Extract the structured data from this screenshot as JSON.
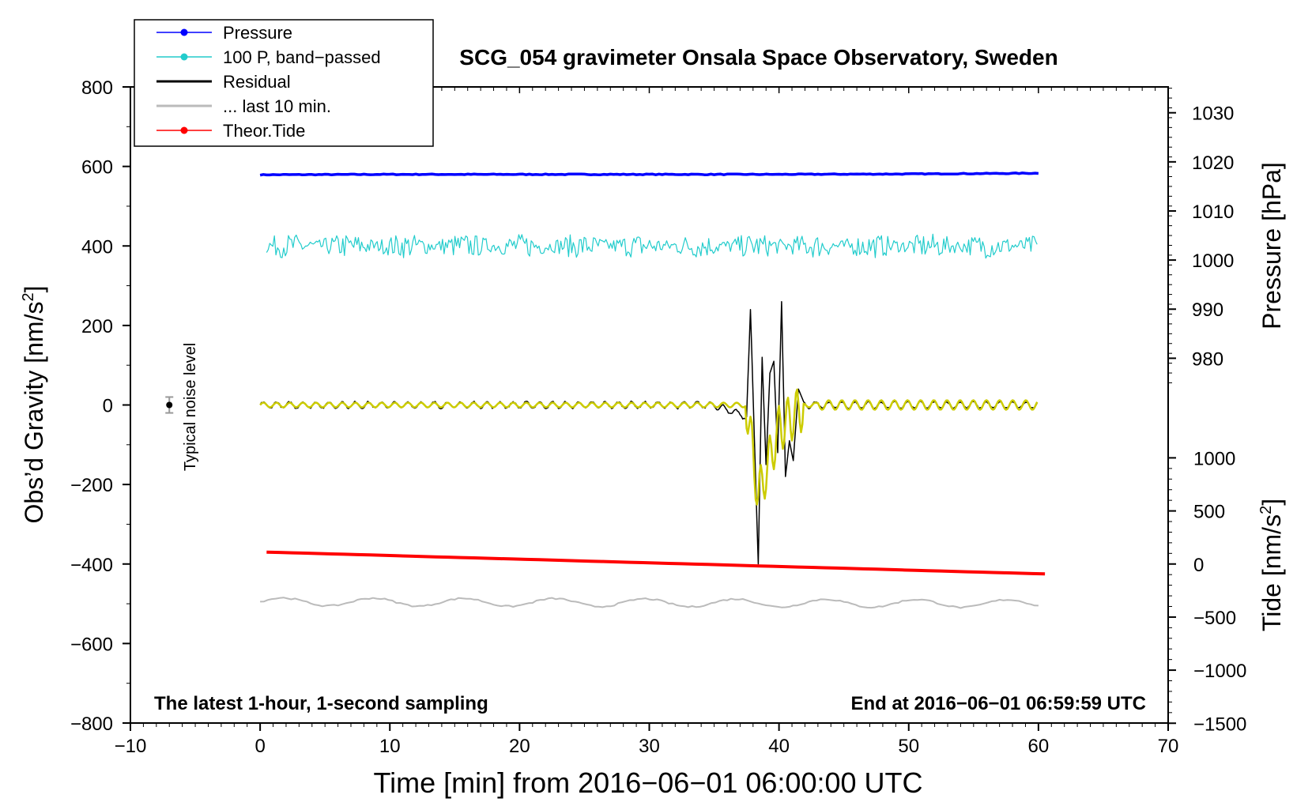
{
  "chart_data": {
    "type": "line",
    "title": "SCG_054 gravimeter Onsala Space Observatory, Sweden",
    "xlabel": "Time [min] from 2016−06−01 06:00:00 UTC",
    "ylabel_main": "Obs’d Gravity [nm/s",
    "ylabel_main_sup": "2",
    "ylabel_main_close": "]",
    "ylabel_pressure": "Pressure [hPa]",
    "ylabel_tide": "Tide [nm/s",
    "ylabel_tide_sup": "2",
    "ylabel_tide_close": "]",
    "xlim": [
      -10,
      70
    ],
    "ylim": [
      -800,
      800
    ],
    "xticks": [
      "−10",
      "0",
      "10",
      "20",
      "30",
      "40",
      "50",
      "60",
      "70"
    ],
    "xtick_values": [
      -10,
      0,
      10,
      20,
      30,
      40,
      50,
      60,
      70
    ],
    "yticks": [
      "800",
      "600",
      "400",
      "200",
      "0",
      "−200",
      "−400",
      "−600",
      "−800"
    ],
    "ytick_values": [
      800,
      600,
      400,
      200,
      0,
      -200,
      -400,
      -600,
      -800
    ],
    "pressure_axis": {
      "ticks": [
        "1030",
        "1020",
        "1010",
        "1000",
        "990",
        "980"
      ],
      "tick_values": [
        1030,
        1020,
        1010,
        1000,
        990,
        980
      ],
      "map_gravity_at_1030": 735,
      "map_gravity_per_hpa": 12.35
    },
    "tide_axis": {
      "ticks": [
        "1000",
        "500",
        "0",
        "−500",
        "−1000",
        "−1500"
      ],
      "tick_values": [
        1000,
        500,
        0,
        -500,
        -1000,
        -1500
      ],
      "map_gravity_at_0": -400,
      "map_gravity_per_unit": 0.267
    },
    "annotation_left": "The latest 1-hour, 1-second sampling",
    "annotation_right": "End at 2016−06−01 06:59:59 UTC",
    "noise_label": "Typical noise level",
    "noise_marker": {
      "x": -7,
      "y": 0,
      "err": 20
    },
    "legend": [
      {
        "label": "Pressure",
        "color": "#0000ff",
        "marker": true
      },
      {
        "label": "100 P, band−passed",
        "color": "#22cccc",
        "marker": true
      },
      {
        "label": "Residual",
        "color": "#000000",
        "marker": false
      },
      {
        "label": "... last 10 min.",
        "color": "#bbbbbb",
        "marker": false
      },
      {
        "label": "Theor.Tide",
        "color": "#ff0000",
        "marker": true
      }
    ],
    "series": [
      {
        "name": "Pressure",
        "color": "#0000ff",
        "x": [
          0,
          10,
          20,
          30,
          40,
          50,
          60
        ],
        "values": [
          579,
          580,
          580,
          580,
          580,
          581,
          583
        ]
      },
      {
        "name": "100 P, band−passed",
        "color": "#22cccc",
        "x": [
          0,
          60
        ],
        "values": [
          400,
          400
        ],
        "noise_amplitude": 40
      },
      {
        "name": "Residual",
        "color": "#000000",
        "x": [
          0,
          35,
          37.5,
          37.8,
          38.1,
          38.4,
          38.7,
          39,
          39.3,
          39.6,
          39.9,
          40.2,
          40.5,
          40.8,
          41.1,
          41.5,
          42,
          60
        ],
        "values": [
          0,
          0,
          -30,
          240,
          -80,
          -400,
          120,
          -150,
          80,
          110,
          -120,
          260,
          -180,
          -90,
          -140,
          40,
          0,
          0
        ]
      },
      {
        "name": "Filtered (yellow)",
        "color": "#cccc00",
        "x": [
          0,
          37.5,
          38.4,
          40,
          42,
          60
        ],
        "values": [
          0,
          0,
          -230,
          -60,
          0,
          0
        ]
      },
      {
        "name": "... last 10 min.",
        "color": "#bbbbbb",
        "x": [
          0,
          60
        ],
        "values": [
          -495,
          -500
        ]
      },
      {
        "name": "Theor.Tide",
        "color": "#ff0000",
        "x": [
          0.5,
          60.5
        ],
        "values": [
          -370,
          -425
        ]
      }
    ]
  }
}
